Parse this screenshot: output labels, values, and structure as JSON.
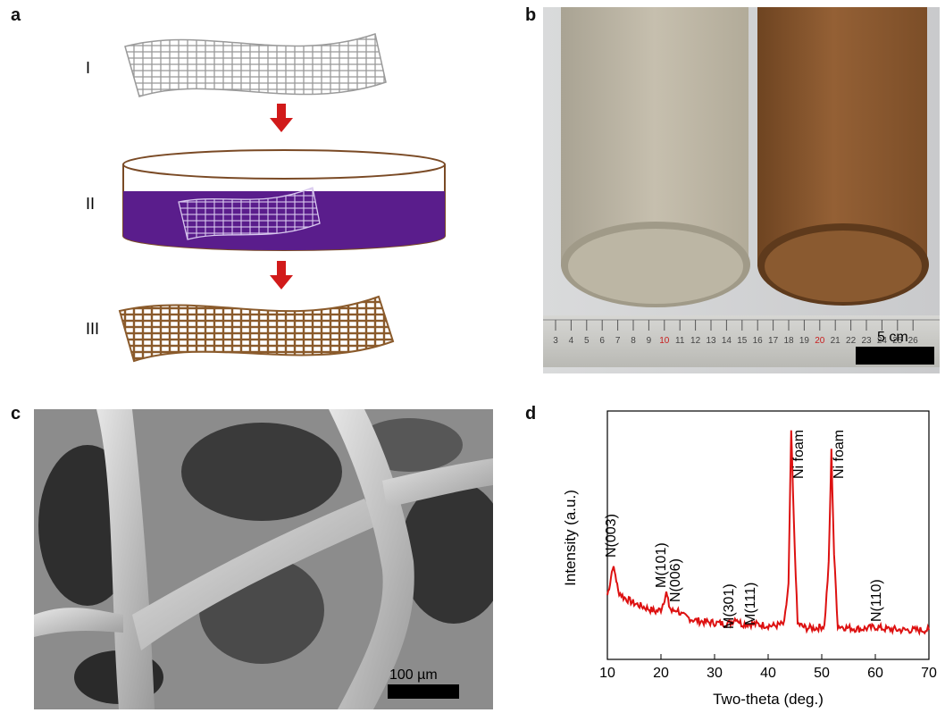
{
  "panels": {
    "a": {
      "letter": "a",
      "steps": [
        "I",
        "II",
        "III"
      ],
      "colors": {
        "mesh_plain": "#9a9a9a",
        "solution": "#5a1d8c",
        "mesh_coated": "#8a5a2b",
        "arrow": "#d11a1a"
      }
    },
    "b": {
      "letter": "b",
      "scale_label": "5 cm",
      "ruler_numbers": [
        "3",
        "4",
        "5",
        "6",
        "7",
        "8",
        "9",
        "10",
        "11",
        "12",
        "13",
        "14",
        "15",
        "16",
        "17",
        "18",
        "19",
        "20",
        "21",
        "22",
        "23",
        "24",
        "25",
        "26"
      ],
      "colors": {
        "left_roll": "#c6bfae",
        "right_roll": "#8a5a2e"
      }
    },
    "c": {
      "letter": "c",
      "scale_label": "100 µm"
    },
    "d": {
      "letter": "d"
    }
  },
  "chart_data": {
    "type": "line",
    "xlabel": "Two-theta (deg.)",
    "ylabel": "Intensity (a.u.)",
    "xlim": [
      10,
      70
    ],
    "xticks": [
      10,
      20,
      30,
      40,
      50,
      60,
      70
    ],
    "color": "#dd1111",
    "series": [
      {
        "x": [
          10,
          10.5,
          11,
          11.5,
          12,
          13,
          15,
          17,
          19,
          20,
          20.5,
          21,
          21.5,
          22,
          23,
          24,
          26,
          28,
          30,
          32,
          33,
          34,
          35,
          37,
          39,
          41,
          43,
          43.8,
          44.3,
          44.8,
          45.5,
          47,
          49,
          50.5,
          51.3,
          51.8,
          52.3,
          53,
          55,
          57,
          59,
          60,
          62,
          65,
          68,
          70
        ],
        "y": [
          0.2,
          0.26,
          0.34,
          0.3,
          0.22,
          0.19,
          0.16,
          0.14,
          0.12,
          0.13,
          0.17,
          0.21,
          0.15,
          0.12,
          0.13,
          0.1,
          0.08,
          0.07,
          0.065,
          0.06,
          0.065,
          0.09,
          0.06,
          0.06,
          0.055,
          0.05,
          0.06,
          0.25,
          1.0,
          0.55,
          0.06,
          0.04,
          0.04,
          0.05,
          0.35,
          0.9,
          0.4,
          0.05,
          0.04,
          0.035,
          0.04,
          0.045,
          0.035,
          0.03,
          0.03,
          0.03
        ]
      }
    ],
    "annotations": [
      {
        "text": "N(003)",
        "x": 11.5
      },
      {
        "text": "M(101)",
        "x": 20.8
      },
      {
        "text": "N(006)",
        "x": 23.5
      },
      {
        "text": "M(301)",
        "x": 33.5
      },
      {
        "text": "M(111)",
        "x": 37.5
      },
      {
        "text": "Ni foam",
        "x": 46.5
      },
      {
        "text": "Ni foam",
        "x": 54.0
      },
      {
        "text": "N(110)",
        "x": 61.0
      }
    ]
  }
}
